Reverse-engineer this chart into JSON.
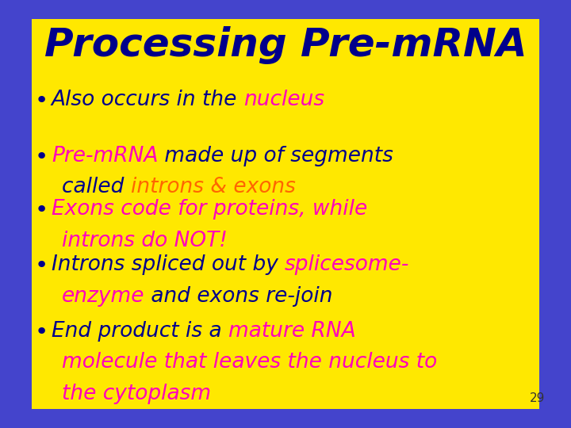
{
  "background_color": "#FFE800",
  "border_color": "#4444CC",
  "title": "Processing Pre-mRNA",
  "title_color": "#00008B",
  "title_fontsize": 36,
  "page_number": "29",
  "bullets": [
    {
      "segments": [
        {
          "text": "Also occurs in the ",
          "color": "#00008B"
        },
        {
          "text": "nucleus",
          "color": "#FF00BB"
        }
      ]
    },
    {
      "segments": [
        {
          "text": "Pre-mRNA",
          "color": "#FF00BB"
        },
        {
          "text": " made up of segments\ncalled ",
          "color": "#00008B"
        },
        {
          "text": "introns & exons",
          "color": "#FF6600"
        }
      ]
    },
    {
      "segments": [
        {
          "text": "Exons code for proteins, while\nintrons do NOT!",
          "color": "#FF00BB"
        }
      ]
    },
    {
      "segments": [
        {
          "text": "Introns spliced out by ",
          "color": "#00008B"
        },
        {
          "text": "splicesome-\nenzyme",
          "color": "#FF00BB"
        },
        {
          "text": " and exons re-join",
          "color": "#00008B"
        }
      ]
    },
    {
      "segments": [
        {
          "text": "End product is a ",
          "color": "#00008B"
        },
        {
          "text": "mature RNA\nmolecule that leaves the nucleus to\nthe cytoplasm",
          "color": "#FF00BB"
        }
      ]
    }
  ],
  "bullet_fontsize": 19,
  "bullet_color": "#00008B",
  "figsize": [
    7.2,
    5.4
  ],
  "dpi": 100
}
